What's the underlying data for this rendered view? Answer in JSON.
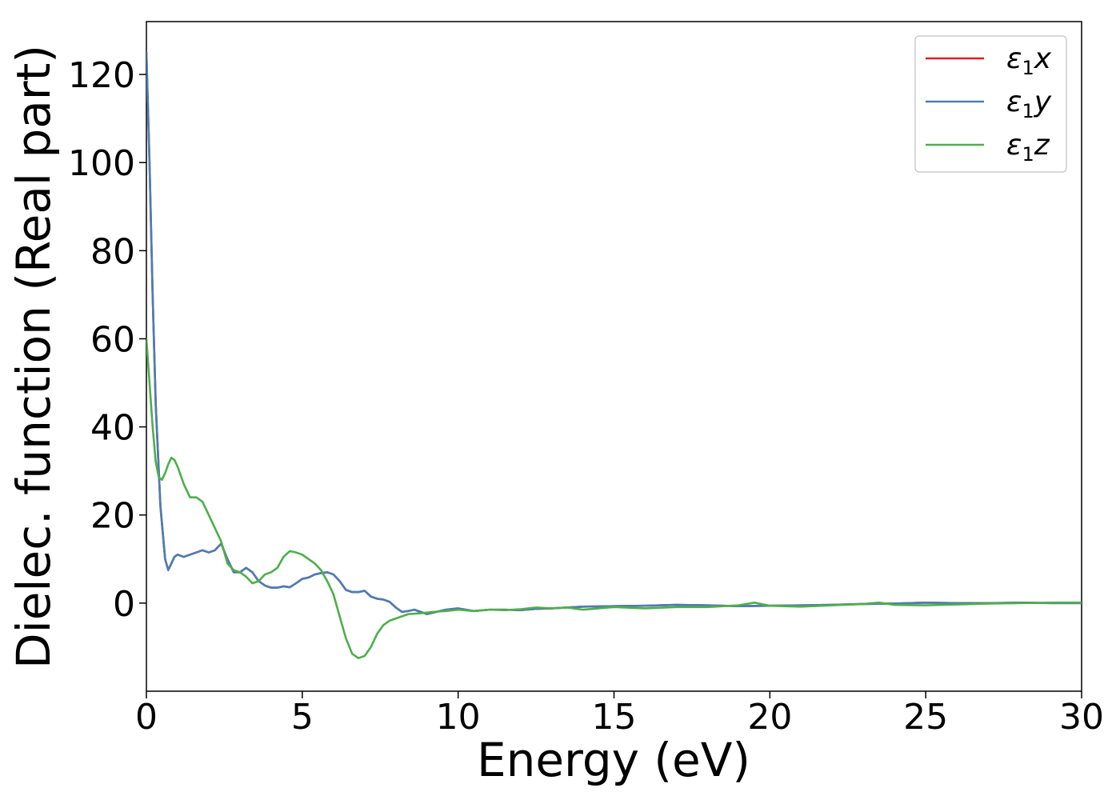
{
  "chart_data": {
    "type": "line",
    "title": "",
    "xlabel": "Energy (eV)",
    "ylabel": "Dielec. function (Real part)",
    "xlim": [
      0,
      30
    ],
    "ylim": [
      -20,
      132
    ],
    "xticks": [
      0,
      5,
      10,
      15,
      20,
      25,
      30
    ],
    "yticks": [
      0,
      20,
      40,
      60,
      80,
      100,
      120
    ],
    "grid": false,
    "legend": "top-right",
    "series": [
      {
        "name": "ε1x",
        "legend_base": "ε",
        "legend_sub": "1",
        "legend_suffix": "x",
        "color": "#e41a1c",
        "x": [
          0,
          0.1,
          0.2,
          0.3,
          0.45,
          0.6,
          0.7,
          0.8,
          0.9,
          1.0,
          1.2,
          1.4,
          1.6,
          1.8,
          2.0,
          2.2,
          2.4,
          2.6,
          2.8,
          3.0,
          3.2,
          3.4,
          3.6,
          3.8,
          4.0,
          4.2,
          4.4,
          4.6,
          4.8,
          5.0,
          5.2,
          5.4,
          5.6,
          5.8,
          6.0,
          6.2,
          6.4,
          6.6,
          6.8,
          7.0,
          7.2,
          7.4,
          7.6,
          7.8,
          8.0,
          8.2,
          8.4,
          8.6,
          8.8,
          9.0,
          9.3,
          9.6,
          10.0,
          10.5,
          11.0,
          11.5,
          12.0,
          12.5,
          13.0,
          13.5,
          14.0,
          15.0,
          16.0,
          17.0,
          18.0,
          19.0,
          20.0,
          21.0,
          22.0,
          23.0,
          24.0,
          25.0,
          26.0,
          27.0,
          28.0,
          29.0,
          30.0
        ],
        "values": [
          125,
          100,
          70,
          45,
          22,
          10,
          7.5,
          9,
          10.5,
          11,
          10.5,
          11,
          11.5,
          12,
          11.5,
          12,
          13.5,
          10,
          7,
          7,
          8,
          7,
          5,
          4,
          3.5,
          3.5,
          3.8,
          3.6,
          4.5,
          5.5,
          5.8,
          6.5,
          6.8,
          7,
          6.5,
          5,
          3,
          2.5,
          2.5,
          2.8,
          1.5,
          1,
          0.8,
          0.3,
          -1,
          -2,
          -1.8,
          -1.5,
          -2,
          -2.5,
          -2,
          -1.5,
          -1.2,
          -1.8,
          -1.5,
          -1.5,
          -1.6,
          -1.3,
          -1.2,
          -1.0,
          -0.8,
          -0.7,
          -0.6,
          -0.4,
          -0.5,
          -0.7,
          -0.6,
          -0.5,
          -0.4,
          -0.2,
          -0.1,
          0.1,
          0.0,
          0.0,
          0.1,
          0.0,
          0.0
        ]
      },
      {
        "name": "ε1y",
        "legend_base": "ε",
        "legend_sub": "1",
        "legend_suffix": "y",
        "color": "#4a7eb5",
        "x": [
          0,
          0.1,
          0.2,
          0.3,
          0.45,
          0.6,
          0.7,
          0.8,
          0.9,
          1.0,
          1.2,
          1.4,
          1.6,
          1.8,
          2.0,
          2.2,
          2.4,
          2.6,
          2.8,
          3.0,
          3.2,
          3.4,
          3.6,
          3.8,
          4.0,
          4.2,
          4.4,
          4.6,
          4.8,
          5.0,
          5.2,
          5.4,
          5.6,
          5.8,
          6.0,
          6.2,
          6.4,
          6.6,
          6.8,
          7.0,
          7.2,
          7.4,
          7.6,
          7.8,
          8.0,
          8.2,
          8.4,
          8.6,
          8.8,
          9.0,
          9.3,
          9.6,
          10.0,
          10.5,
          11.0,
          11.5,
          12.0,
          12.5,
          13.0,
          13.5,
          14.0,
          15.0,
          16.0,
          17.0,
          18.0,
          19.0,
          20.0,
          21.0,
          22.0,
          23.0,
          24.0,
          25.0,
          26.0,
          27.0,
          28.0,
          29.0,
          30.0
        ],
        "values": [
          125,
          100,
          70,
          45,
          22,
          10,
          7.5,
          9,
          10.5,
          11,
          10.5,
          11,
          11.5,
          12,
          11.5,
          12,
          13.5,
          10,
          7,
          7,
          8,
          7,
          5,
          4,
          3.5,
          3.5,
          3.8,
          3.6,
          4.5,
          5.5,
          5.8,
          6.5,
          6.8,
          7,
          6.5,
          5,
          3,
          2.5,
          2.5,
          2.8,
          1.5,
          1,
          0.8,
          0.3,
          -1,
          -2,
          -1.8,
          -1.5,
          -2,
          -2.5,
          -2,
          -1.5,
          -1.2,
          -1.8,
          -1.5,
          -1.5,
          -1.6,
          -1.3,
          -1.2,
          -1.0,
          -0.8,
          -0.7,
          -0.6,
          -0.4,
          -0.5,
          -0.7,
          -0.6,
          -0.5,
          -0.4,
          -0.2,
          -0.1,
          0.1,
          0.0,
          0.0,
          0.1,
          0.0,
          0.0
        ]
      },
      {
        "name": "ε1z",
        "legend_base": "ε",
        "legend_sub": "1",
        "legend_suffix": "z",
        "color": "#4daf4a",
        "x": [
          0,
          0.1,
          0.2,
          0.3,
          0.4,
          0.5,
          0.6,
          0.7,
          0.8,
          0.9,
          1.0,
          1.2,
          1.4,
          1.6,
          1.8,
          2.0,
          2.2,
          2.4,
          2.6,
          2.8,
          3.0,
          3.2,
          3.4,
          3.6,
          3.8,
          4.0,
          4.2,
          4.4,
          4.6,
          4.8,
          5.0,
          5.2,
          5.4,
          5.6,
          5.8,
          6.0,
          6.2,
          6.4,
          6.6,
          6.8,
          7.0,
          7.2,
          7.4,
          7.6,
          7.8,
          8.0,
          8.4,
          8.8,
          9.2,
          9.6,
          10.0,
          10.5,
          11.0,
          11.5,
          12.0,
          12.5,
          13.0,
          13.5,
          14.0,
          15.0,
          16.0,
          17.0,
          18.0,
          19.0,
          19.5,
          20.0,
          21.0,
          22.0,
          23.0,
          23.5,
          24.0,
          25.0,
          26.0,
          27.0,
          28.0,
          29.0,
          30.0
        ],
        "values": [
          60,
          50,
          40,
          32,
          28.5,
          28,
          29.5,
          31.5,
          33,
          32.5,
          31,
          27,
          24,
          24,
          23,
          20,
          17,
          14,
          9,
          7.5,
          7,
          6,
          4.5,
          5,
          6.5,
          7,
          8,
          10.5,
          11.8,
          11.5,
          11,
          10,
          9,
          7.5,
          5,
          2,
          -3,
          -8,
          -11.5,
          -12.5,
          -12,
          -10,
          -7,
          -5,
          -4,
          -3.5,
          -2.5,
          -2.3,
          -2.0,
          -1.8,
          -1.5,
          -1.8,
          -1.5,
          -1.6,
          -1.4,
          -1.0,
          -1.2,
          -1.0,
          -1.5,
          -0.9,
          -1.2,
          -0.9,
          -0.9,
          -0.5,
          0.1,
          -0.6,
          -0.8,
          -0.5,
          -0.2,
          0.1,
          -0.4,
          -0.5,
          -0.3,
          -0.1,
          0.0,
          0.1,
          0.1
        ]
      }
    ]
  }
}
